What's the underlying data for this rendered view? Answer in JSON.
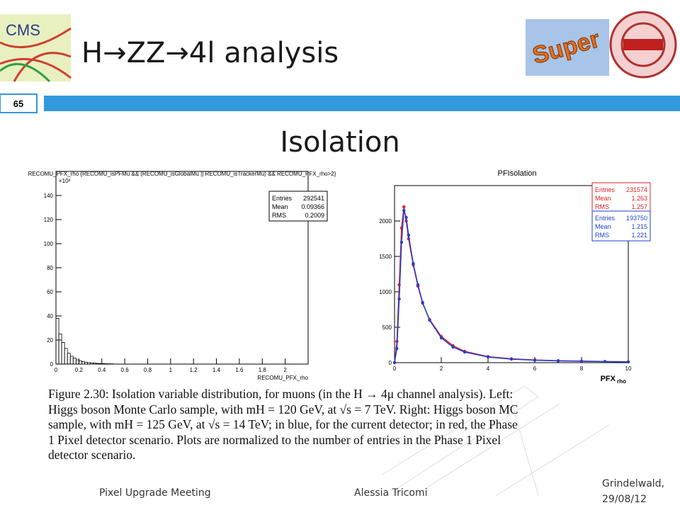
{
  "header": {
    "title": "H→ZZ→4l analysis",
    "slide_number": "65"
  },
  "logos": {
    "left": "CMS",
    "right": "Super"
  },
  "subtitle": "Isolation",
  "chart_data": [
    {
      "type": "histogram",
      "title": "RECOMU_PFX_rho {RECOMU_isPFMu && (RECOMU_isGlobalMu || RECOMU_isTrackerMu) && RECOMU_PFX_rho>2}",
      "x_label": "RECOMU_PFX_rho",
      "y_multiplier": "×10³",
      "bins": [
        0,
        0.025,
        0.05,
        0.075,
        0.1,
        0.125,
        0.15,
        0.175,
        0.2,
        0.225,
        0.25,
        0.275,
        0.3,
        0.325,
        0.35,
        0.375,
        0.4,
        0.425,
        0.45,
        0.475,
        0.5
      ],
      "values": [
        38,
        25,
        18,
        13,
        9,
        6.5,
        5,
        3.5,
        2.7,
        2,
        1.5,
        1.2,
        1,
        0.8,
        0.6,
        0.5,
        0.4,
        0.3,
        0.25,
        0.2
      ],
      "color": "#000000",
      "xlim": [
        0,
        2.2
      ],
      "ylim": [
        0,
        160
      ],
      "xticks": [
        0,
        0.2,
        0.4,
        0.6,
        0.8,
        1,
        1.2,
        1.4,
        1.6,
        1.8,
        2
      ],
      "yticks": [
        0,
        20,
        40,
        60,
        80,
        100,
        120,
        140
      ],
      "stats": [
        {
          "label": "Entries",
          "value": 292541
        },
        {
          "label": "Mean",
          "value": 0.09366
        },
        {
          "label": "RMS",
          "value": 0.2009
        }
      ]
    },
    {
      "type": "line",
      "title": "PFIsolation",
      "x_label": "PFX",
      "x_label_sub": "rho",
      "x": [
        0,
        0.1,
        0.2,
        0.3,
        0.4,
        0.5,
        0.6,
        0.8,
        1,
        1.2,
        1.5,
        2,
        2.5,
        3,
        4,
        5,
        6,
        7,
        8,
        9,
        10
      ],
      "series": [
        {
          "color": "#e02020",
          "values": [
            0,
            300,
            1100,
            1900,
            2200,
            2000,
            1750,
            1380,
            1080,
            840,
            610,
            370,
            240,
            160,
            85,
            55,
            38,
            28,
            22,
            16,
            12
          ],
          "stats": [
            {
              "label": "Entries",
              "value": 231574
            },
            {
              "label": "Mean",
              "value": 1.263
            },
            {
              "label": "RMS",
              "value": 1.257
            }
          ]
        },
        {
          "color": "#1f3fd0",
          "values": [
            0,
            200,
            900,
            1700,
            2150,
            2050,
            1800,
            1400,
            1100,
            850,
            600,
            350,
            220,
            150,
            80,
            50,
            35,
            25,
            20,
            15,
            10
          ],
          "stats": [
            {
              "label": "Entries",
              "value": 193750
            },
            {
              "label": "Mean",
              "value": 1.215
            },
            {
              "label": "RMS",
              "value": 1.221
            }
          ]
        }
      ],
      "xlim": [
        0,
        10
      ],
      "ylim": [
        0,
        2500
      ],
      "xticks": [
        0,
        2,
        4,
        6,
        8,
        10
      ],
      "yticks": [
        0,
        500,
        1000,
        1500,
        2000
      ]
    }
  ],
  "caption": {
    "lines": [
      "Figure 2.30: Isolation variable distribution, for muons (in the H → 4μ channel analysis). Left:",
      "Higgs boson Monte Carlo sample, with mH = 120 GeV, at √s = 7 TeV. Right: Higgs boson MC",
      "sample, with mH = 125 GeV, at √s = 14 TeV; in blue, for the current detector; in red, the Phase",
      "1 Pixel detector scenario.  Plots are normalized to the number of entries in the Phase 1 Pixel",
      "detector scenario."
    ]
  },
  "footer": {
    "event": "Pixel Upgrade Meeting",
    "author": "Alessia Tricomi",
    "place_date": "Grindelwald, 29/08/12"
  }
}
